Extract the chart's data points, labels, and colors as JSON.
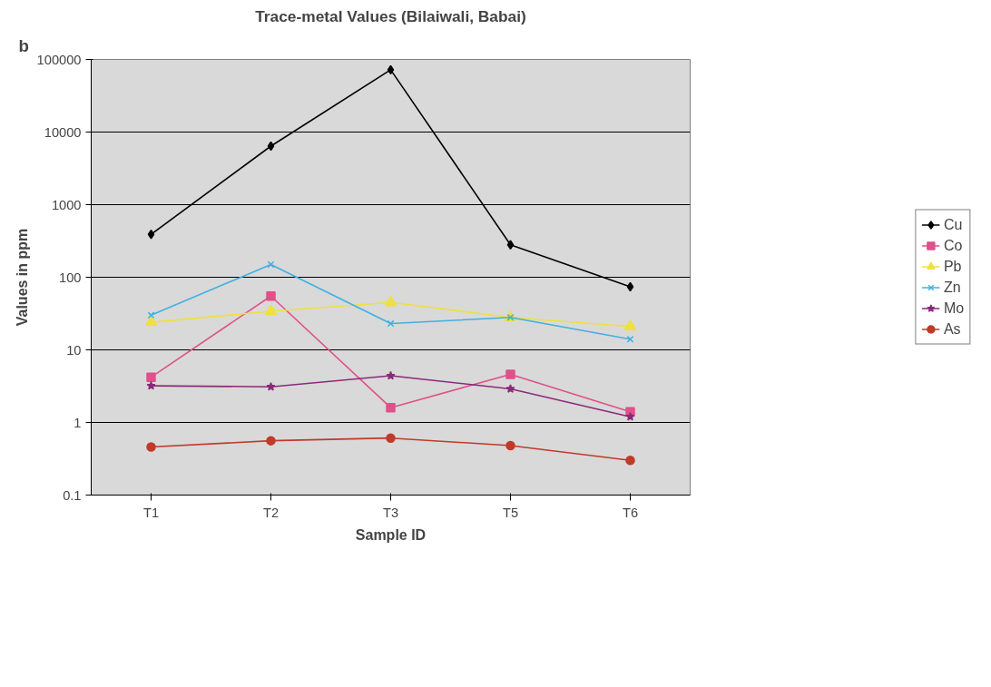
{
  "chart_data": {
    "type": "line",
    "title": "Trace-metal Values (Bilaiwali, Babai)",
    "xlabel": "Sample ID",
    "ylabel": "Values in ppm",
    "annotations": [
      "b"
    ],
    "categories": [
      "T1",
      "T2",
      "T3",
      "T5",
      "T6"
    ],
    "log": true,
    "ylim": [
      0.1,
      100000
    ],
    "yticks": [
      0.1,
      1,
      10,
      100,
      1000,
      10000,
      100000
    ],
    "grid": "y",
    "legend": "right",
    "series": [
      {
        "name": "Cu",
        "color": "#000000",
        "marker": "diamond",
        "values": [
          390,
          6400,
          72000,
          280,
          74
        ]
      },
      {
        "name": "Co",
        "color": "#e0508a",
        "marker": "square",
        "values": [
          4.2,
          55,
          1.6,
          4.6,
          1.4
        ]
      },
      {
        "name": "Pb",
        "color": "#eee040",
        "marker": "triangle",
        "values": [
          24,
          34,
          45,
          28,
          21
        ]
      },
      {
        "name": "Zn",
        "color": "#40b0e0",
        "marker": "cross",
        "values": [
          30,
          150,
          23,
          28,
          14
        ]
      },
      {
        "name": "Mo",
        "color": "#8b2a7a",
        "marker": "star",
        "values": [
          3.2,
          3.1,
          4.4,
          2.9,
          1.2
        ]
      },
      {
        "name": "As",
        "color": "#c03a2a",
        "marker": "circle",
        "values": [
          0.46,
          0.56,
          0.61,
          0.48,
          0.3
        ]
      }
    ]
  }
}
